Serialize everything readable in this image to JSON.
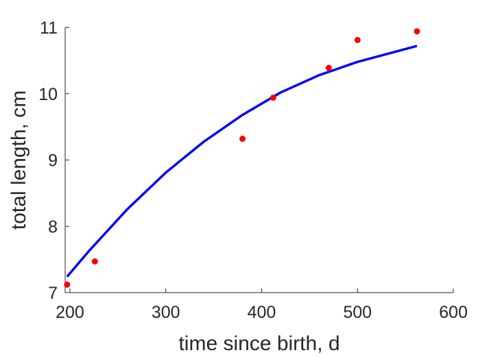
{
  "chart_data": {
    "type": "scatter",
    "xlabel": "time since birth, d",
    "ylabel": "total length, cm",
    "xlim": [
      195,
      600
    ],
    "ylim": [
      7,
      11
    ],
    "x_ticks": [
      200,
      300,
      400,
      500,
      600
    ],
    "y_ticks": [
      7,
      8,
      9,
      10,
      11
    ],
    "grid": false,
    "box": false,
    "series": [
      {
        "type": "scatter",
        "color": "#ff0000",
        "points": [
          {
            "x": 197,
            "y": 7.12
          },
          {
            "x": 226,
            "y": 7.47
          },
          {
            "x": 380,
            "y": 9.32
          },
          {
            "x": 412,
            "y": 9.94
          },
          {
            "x": 470,
            "y": 10.39
          },
          {
            "x": 500,
            "y": 10.81
          },
          {
            "x": 562,
            "y": 10.94
          }
        ]
      },
      {
        "type": "line",
        "color": "#0000ff",
        "points": [
          {
            "x": 197,
            "y": 7.24
          },
          {
            "x": 220,
            "y": 7.63
          },
          {
            "x": 260,
            "y": 8.26
          },
          {
            "x": 300,
            "y": 8.81
          },
          {
            "x": 340,
            "y": 9.28
          },
          {
            "x": 380,
            "y": 9.68
          },
          {
            "x": 420,
            "y": 10.02
          },
          {
            "x": 460,
            "y": 10.28
          },
          {
            "x": 500,
            "y": 10.48
          },
          {
            "x": 562,
            "y": 10.72
          }
        ]
      }
    ]
  }
}
